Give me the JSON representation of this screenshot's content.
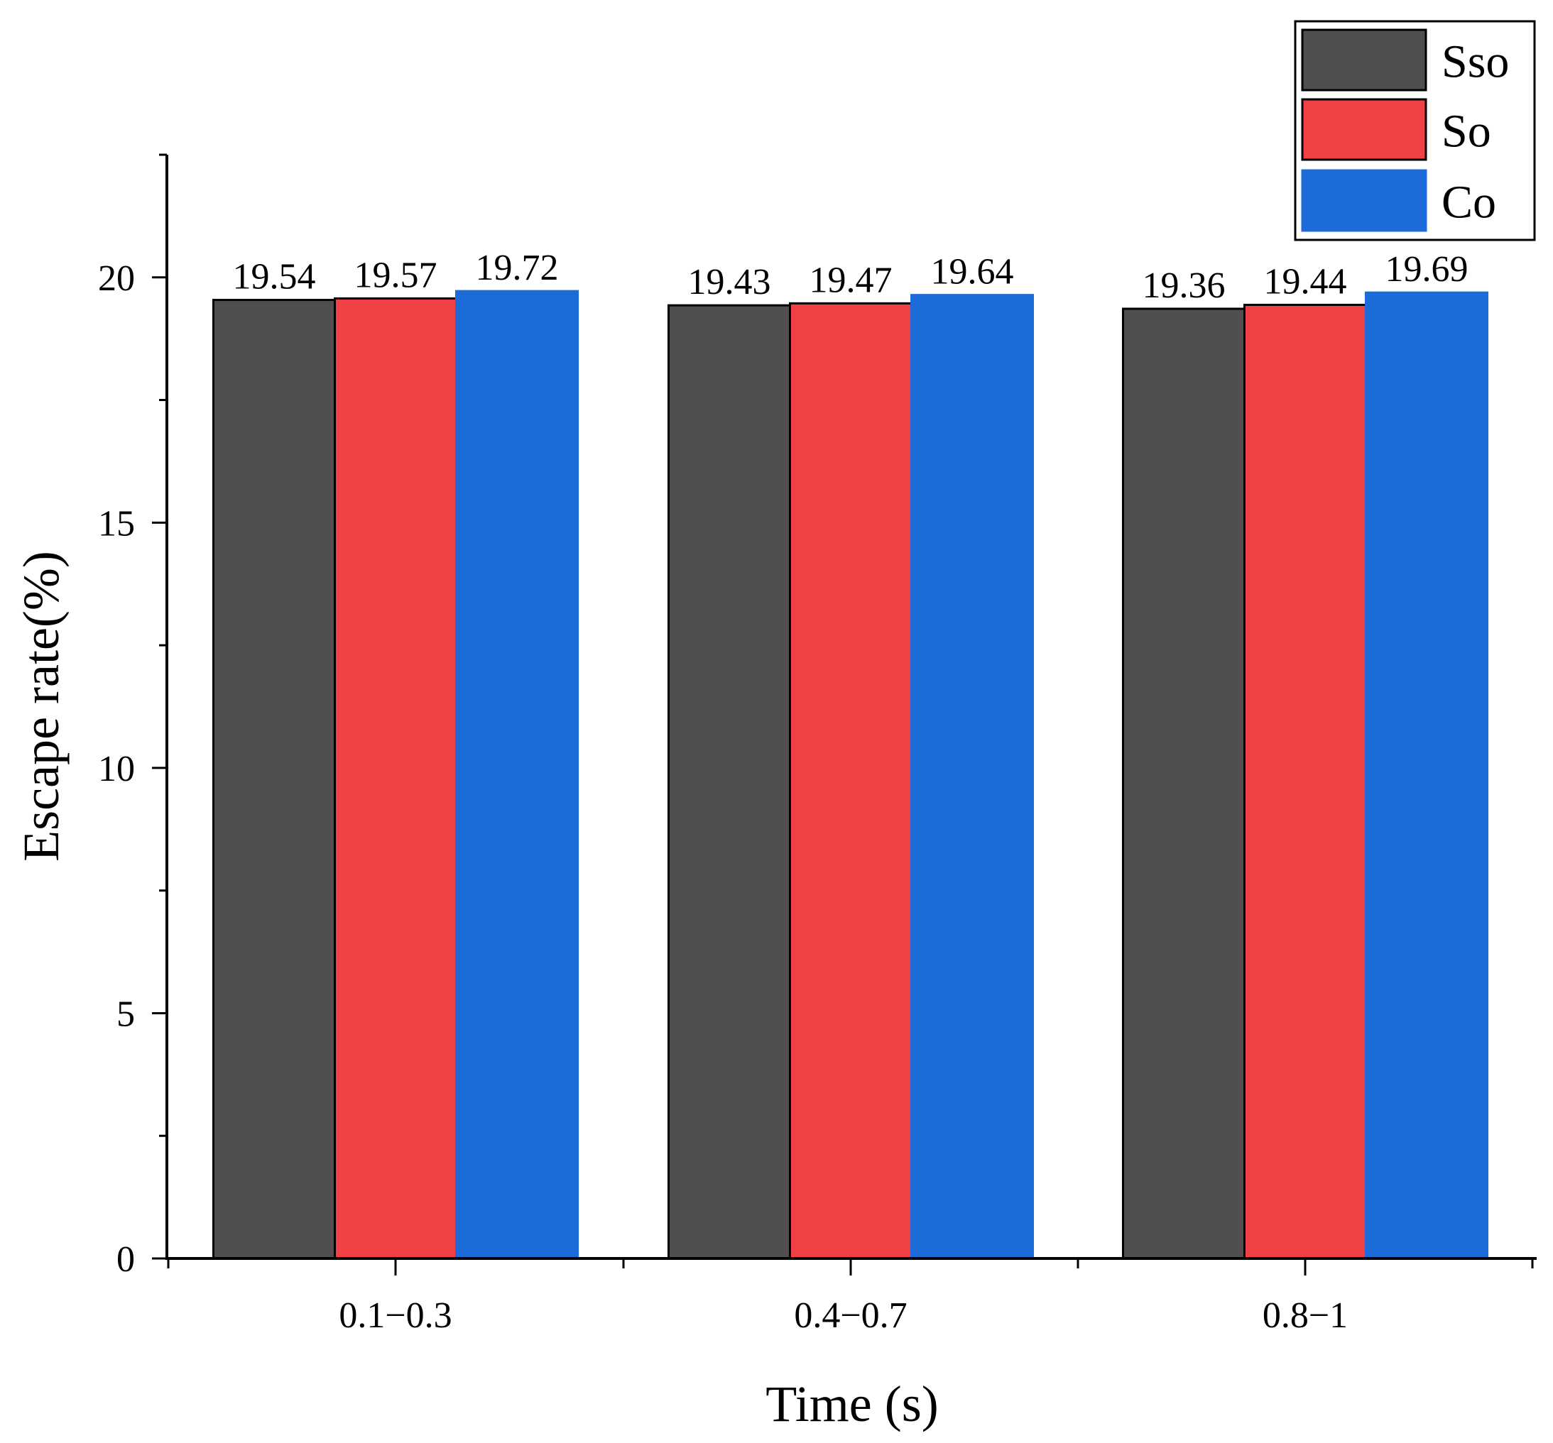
{
  "chart_data": {
    "type": "bar",
    "title": "",
    "xlabel": "Time (s)",
    "ylabel": "Escape rate(%)",
    "ylim": [
      0,
      22.5
    ],
    "yticks": [
      0,
      5,
      10,
      15,
      20
    ],
    "ytick_labels": [
      "0",
      "5",
      "10",
      "15",
      "20"
    ],
    "categories": [
      "0.1−0.3",
      "0.4−0.7",
      "0.8−1"
    ],
    "series": [
      {
        "name": "Sso",
        "color": "#4f4f4f",
        "values": [
          19.54,
          19.43,
          19.36
        ],
        "labels": [
          "19.54",
          "19.43",
          "19.36"
        ]
      },
      {
        "name": "So",
        "color": "#f14046",
        "values": [
          19.57,
          19.47,
          19.44
        ],
        "labels": [
          "19.57",
          "19.47",
          "19.44"
        ]
      },
      {
        "name": "Co",
        "color": "#1c6bd8",
        "values": [
          19.72,
          19.64,
          19.69
        ],
        "labels": [
          "19.72",
          "19.64",
          "19.69"
        ]
      }
    ],
    "legend": {
      "position": "top-right"
    },
    "grid": false
  }
}
